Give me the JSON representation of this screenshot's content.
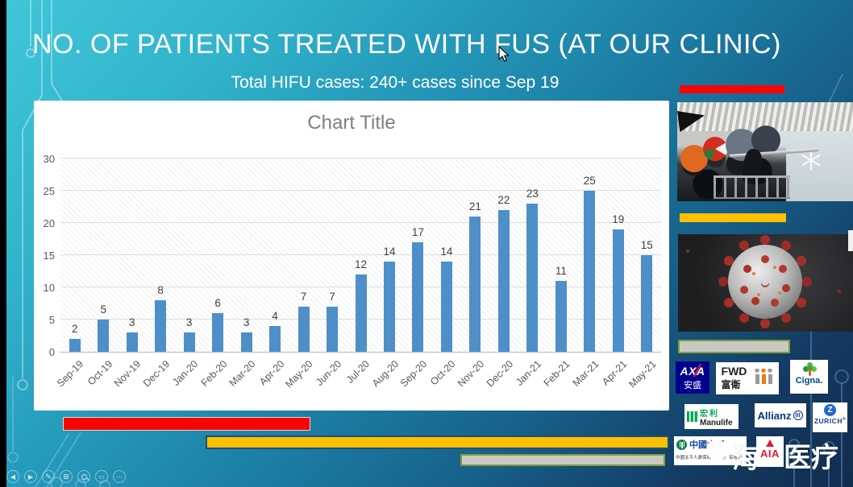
{
  "slide": {
    "title": "NO. OF PATIENTS TREATED WITH FUS (AT OUR CLINIC)",
    "subtitle": "Total HIFU cases: 240+ cases since Sep 19"
  },
  "chart_data": {
    "type": "bar",
    "title": "Chart Title",
    "categories": [
      "Sep-19",
      "Oct-19",
      "Nov-19",
      "Dec-19",
      "Jan-20",
      "Feb-20",
      "Mar-20",
      "Apr-20",
      "May-20",
      "Jun-20",
      "Jul-20",
      "Aug-20",
      "Sep-20",
      "Oct-20",
      "Nov-20",
      "Dec-20",
      "Jan-21",
      "Feb-21",
      "Mar-21",
      "Apr-21",
      "May-21"
    ],
    "values": [
      2,
      5,
      3,
      8,
      3,
      6,
      3,
      4,
      7,
      7,
      12,
      14,
      17,
      14,
      21,
      22,
      23,
      11,
      25,
      19,
      15
    ],
    "xlabel": "",
    "ylabel": "",
    "ylim": [
      0,
      30
    ],
    "yticks": [
      0,
      5,
      10,
      15,
      20,
      25,
      30
    ],
    "grid": true,
    "legend": false,
    "bar_color": "#4e8fc9",
    "plot_background": "diagonal-hatch"
  },
  "logos": {
    "axa": {
      "text": "AXA",
      "cn": "安盛"
    },
    "fwd": {
      "text": "FWD",
      "cn": "富衛"
    },
    "cigna": {
      "text": "Cigna."
    },
    "manulife": {
      "cn": "宏利",
      "text": "Manulife"
    },
    "allianz": {
      "text": "Allianz"
    },
    "zurich": {
      "text": "ZURICH",
      "reg": "®"
    },
    "taiping": {
      "text": "中國太平",
      "subtext": "中國太平人壽保險（香港）有限公司"
    },
    "aia": {
      "text": "AIA"
    }
  },
  "watermark": {
    "left": "海",
    "right": "医疗"
  },
  "decor_colors": {
    "red": "#f60505",
    "yellow": "#fec000",
    "gray": "#c9c9c2",
    "gray_border": "#7f9c3c",
    "accent_blue": "#4e8fc9"
  },
  "right_panel": {
    "images": [
      "hong-kong-protest-photo",
      "coronavirus-render-photo"
    ]
  },
  "toolbar": {
    "items": [
      {
        "name": "previous-slide",
        "glyph": "◀",
        "draw": "glyph"
      },
      {
        "name": "next-slide",
        "glyph": "▶",
        "draw": "glyph"
      },
      {
        "name": "pen-tools",
        "glyph": "✎",
        "draw": "glyph-mid"
      },
      {
        "name": "all-slides",
        "glyph": "⊞",
        "draw": "glyph-mid"
      },
      {
        "name": "zoom",
        "glyph": "",
        "draw": "magnifier"
      },
      {
        "name": "subtitles",
        "glyph": "▭",
        "draw": "glyph"
      },
      {
        "name": "more-options",
        "glyph": "⋯",
        "draw": "glyph-mid"
      }
    ]
  }
}
